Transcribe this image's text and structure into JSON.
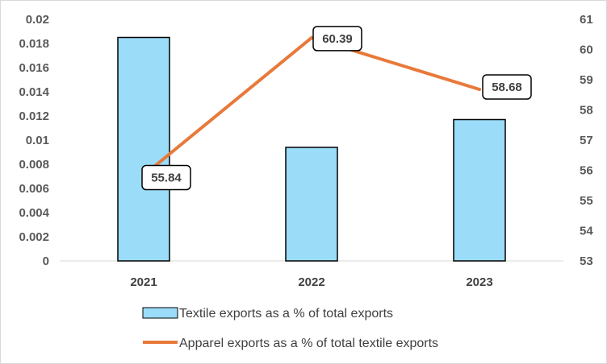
{
  "chart_data": {
    "type": "bar+line",
    "categories": [
      "2021",
      "2022",
      "2023"
    ],
    "series": [
      {
        "name": "Textile exports as a % of total exports",
        "type": "bar",
        "axis": "left",
        "values": [
          0.0185,
          0.0094,
          0.0117
        ]
      },
      {
        "name": "Apparel exports as a % of total textile exports",
        "type": "line",
        "axis": "right",
        "values": [
          55.84,
          60.39,
          58.68
        ],
        "data_labels": [
          "55.84",
          "60.39",
          "58.68"
        ]
      }
    ],
    "y_left": {
      "ylim": [
        0,
        0.02
      ],
      "ticks": [
        "0",
        "0.002",
        "0.004",
        "0.006",
        "0.008",
        "0.01",
        "0.012",
        "0.014",
        "0.016",
        "0.018",
        "0.02"
      ]
    },
    "y_right": {
      "ylim": [
        53,
        61
      ],
      "ticks": [
        "53",
        "54",
        "55",
        "56",
        "57",
        "58",
        "59",
        "60",
        "61"
      ]
    },
    "grid": false,
    "legend_position": "bottom",
    "colors": {
      "bar_fill": "#9BDCF8",
      "bar_stroke": "#000000",
      "line": "#E8793A",
      "axis": "#d9d9d9"
    }
  }
}
